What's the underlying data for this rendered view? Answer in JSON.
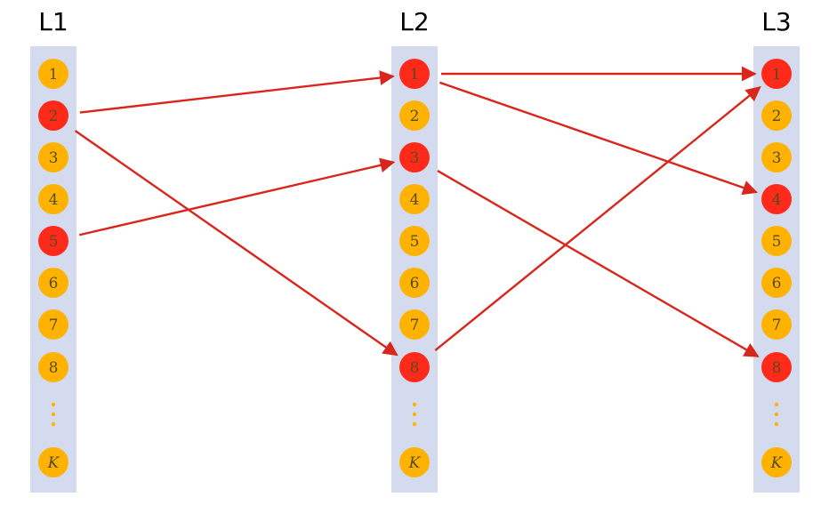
{
  "colors": {
    "node_default": "#ffb300",
    "node_active": "#ff2a1a",
    "edge": "#d9261c",
    "column_bar": "#d4dbef",
    "label": "#5a4a1a"
  },
  "columns": [
    {
      "title": "L1",
      "nodes": [
        "1",
        "2",
        "3",
        "4",
        "5",
        "6",
        "7",
        "8",
        "⋮",
        "K"
      ],
      "active": [
        "2",
        "5"
      ]
    },
    {
      "title": "L2",
      "nodes": [
        "1",
        "2",
        "3",
        "4",
        "5",
        "6",
        "7",
        "8",
        "⋮",
        "K"
      ],
      "active": [
        "1",
        "3",
        "8"
      ]
    },
    {
      "title": "L3",
      "nodes": [
        "1",
        "2",
        "3",
        "4",
        "5",
        "6",
        "7",
        "8",
        "⋮",
        "K"
      ],
      "active": [
        "1",
        "4",
        "8"
      ]
    }
  ],
  "edges": [
    {
      "from": [
        "L1",
        "2"
      ],
      "to": [
        "L2",
        "1"
      ]
    },
    {
      "from": [
        "L1",
        "2"
      ],
      "to": [
        "L2",
        "8"
      ]
    },
    {
      "from": [
        "L1",
        "5"
      ],
      "to": [
        "L2",
        "3"
      ]
    },
    {
      "from": [
        "L2",
        "1"
      ],
      "to": [
        "L3",
        "1"
      ]
    },
    {
      "from": [
        "L2",
        "1"
      ],
      "to": [
        "L3",
        "4"
      ]
    },
    {
      "from": [
        "L2",
        "3"
      ],
      "to": [
        "L3",
        "8"
      ]
    },
    {
      "from": [
        "L2",
        "8"
      ],
      "to": [
        "L3",
        "1"
      ]
    }
  ]
}
